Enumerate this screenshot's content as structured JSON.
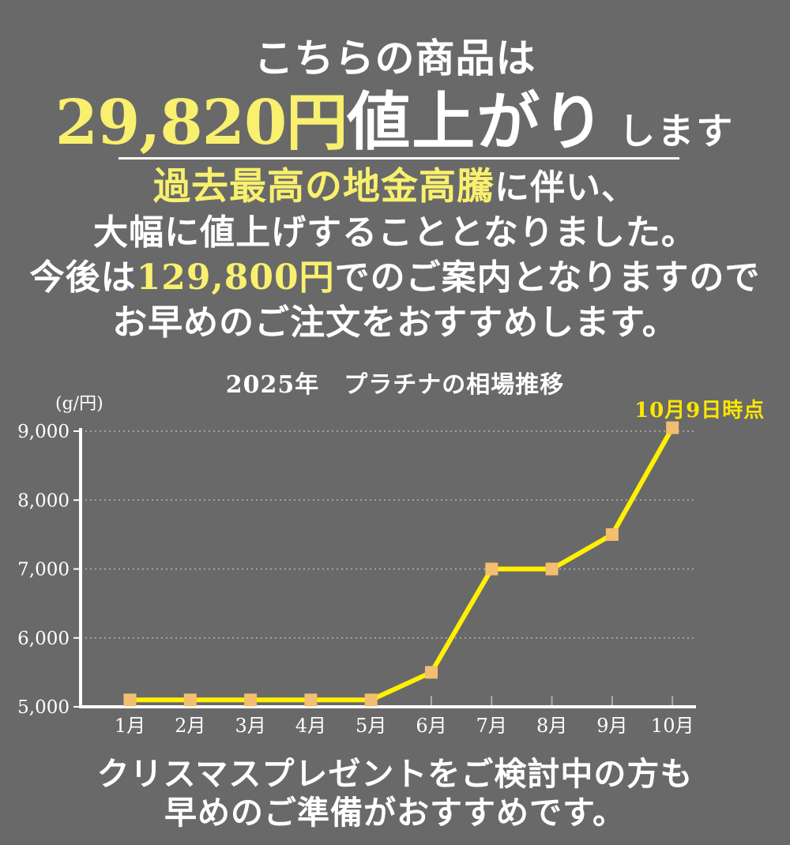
{
  "page": {
    "bg_color": "#696969"
  },
  "hero": {
    "line1": "こちらの商品は",
    "price": "29,820円",
    "emphasis": "値上がり",
    "suffix": "します"
  },
  "notice": {
    "line1_highlight": "過去最高の地金高騰",
    "line1_rest": "に伴い、",
    "line2": "大幅に値上げすることとなりました。",
    "line3_pre": "今後は",
    "line3_price": "129,800円",
    "line3_post": "でのご案内となりますので",
    "line4": "お早めのご注文をおすすめします。"
  },
  "chart": {
    "title": "2025年　プラチナの相場推移",
    "unit_label": "(g/円)",
    "annotation": "10月9日時点",
    "colors": {
      "line": "#FFF100",
      "marker": "#F2BE70",
      "annotation": "#FFE600",
      "axis": "#FFFFFF",
      "highlight_text": "#F8F06E",
      "background": "#696969"
    }
  },
  "chart_data": {
    "type": "line",
    "title": "2025年　プラチナの相場推移",
    "ylabel": "(g/円)",
    "x": [
      "1月",
      "2月",
      "3月",
      "4月",
      "5月",
      "6月",
      "7月",
      "8月",
      "9月",
      "10月"
    ],
    "values": [
      5100,
      5100,
      5100,
      5100,
      5100,
      5500,
      7000,
      7000,
      7500,
      9050
    ],
    "yticks": [
      5000,
      6000,
      7000,
      8000,
      9000
    ],
    "ytick_labels": [
      "5,000",
      "6,000",
      "7,000",
      "8,000",
      "9,000"
    ],
    "ylim": [
      5000,
      9300
    ],
    "grid": "dotted horizontal gridlines at each 1,000",
    "legend": "none",
    "annotation": "10月9日時点 (last point, October)"
  },
  "footer": {
    "line1": "クリスマスプレゼントをご検討中の方も",
    "line2": "早めのご準備がおすすめです。"
  }
}
